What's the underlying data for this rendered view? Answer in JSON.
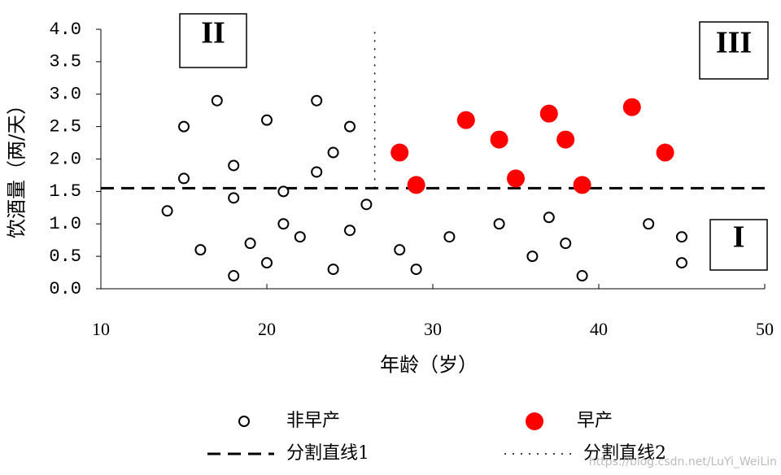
{
  "chart_data": {
    "type": "scatter",
    "x_label": "年龄（岁）",
    "y_label": "饮酒量（两/天）",
    "xlim": [
      10,
      50
    ],
    "xticks": [
      10,
      20,
      30,
      40,
      50
    ],
    "ylim": [
      0,
      4
    ],
    "yticks": [
      {
        "value": 0,
        "label": "0.0"
      },
      0.5,
      {
        "value": 1,
        "label": "1.0"
      },
      1.5,
      {
        "value": 2,
        "label": "2.0"
      },
      2.5,
      {
        "value": 3,
        "label": "3.0"
      },
      3.5,
      {
        "value": 4,
        "label": "4.0"
      }
    ],
    "grid": false,
    "series": [
      {
        "name": "非早产",
        "color": "#000000",
        "marker": "open",
        "x": [
          14,
          15,
          15,
          16,
          17,
          18,
          18,
          18,
          19,
          20,
          20,
          21,
          21,
          22,
          23,
          23,
          24,
          24,
          25,
          25,
          26,
          28,
          29,
          31,
          34,
          36,
          37,
          38,
          39,
          43,
          45,
          45
        ],
        "values": [
          1.2,
          2.5,
          1.7,
          0.6,
          2.9,
          1.9,
          1.4,
          0.2,
          0.7,
          2.6,
          0.4,
          1.5,
          1.0,
          0.8,
          2.9,
          1.8,
          2.1,
          0.3,
          2.5,
          0.9,
          1.3,
          0.6,
          0.3,
          0.8,
          1.0,
          0.5,
          1.1,
          0.7,
          0.2,
          1.0,
          0.8,
          0.4
        ]
      },
      {
        "name": "早产",
        "color": "#ff0000",
        "marker": "filled",
        "x": [
          28,
          29,
          32,
          34,
          35,
          37,
          38,
          39,
          42,
          44
        ],
        "values": [
          2.1,
          1.6,
          2.6,
          2.3,
          1.7,
          2.7,
          2.3,
          1.6,
          2.8,
          2.1
        ]
      }
    ],
    "lines": [
      {
        "name": "分割直线1",
        "color": "#000000",
        "dash": "long",
        "x": [
          10,
          50
        ],
        "values": [
          1.55,
          1.55
        ]
      },
      {
        "name": "分割直线2",
        "color": "#000000",
        "dash": "dot",
        "x": [
          26.5,
          26.5
        ],
        "values": [
          1.55,
          4
        ]
      }
    ],
    "annotations": [
      "II",
      "III",
      "I"
    ],
    "watermark": "https://blog.csdn.net/LuYi_WeiLin"
  }
}
